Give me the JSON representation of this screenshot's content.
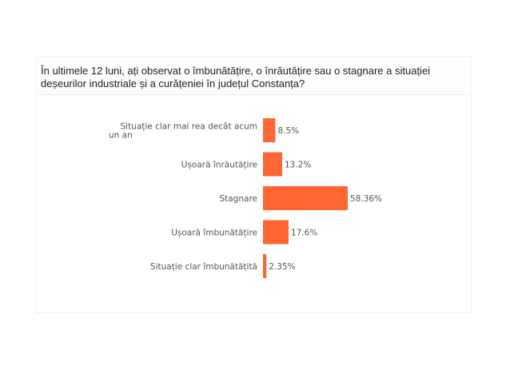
{
  "question": "În ultimele 12 luni, ați observat o îmbunătățire, o înrăutățire sau o stagnare a situației deșeurilor industriale și a curățeniei în județul Constanța?",
  "chart_data": {
    "type": "bar",
    "orientation": "horizontal",
    "categories": [
      [
        "Situație clar mai rea decât acum",
        "un an"
      ],
      [
        "Ușoară înrăutățire"
      ],
      [
        "Stagnare"
      ],
      [
        "Ușoară îmbunătățire"
      ],
      [
        "Situație clar îmbunătățită"
      ]
    ],
    "values": [
      8.5,
      13.2,
      58.36,
      17.6,
      2.35
    ],
    "value_labels": [
      "8.5%",
      "13.2%",
      "58.36%",
      "17.6%",
      "2.35%"
    ],
    "color": "#ff6633",
    "grid": false
  }
}
